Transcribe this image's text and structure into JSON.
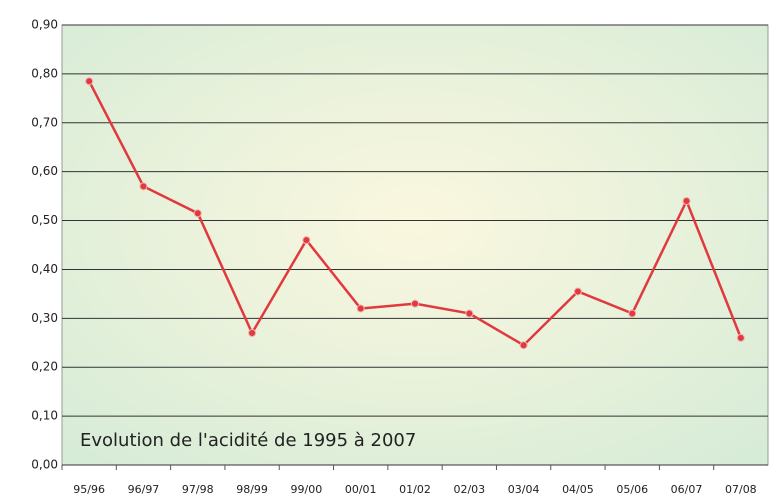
{
  "chart_data": {
    "type": "line",
    "title": "Evolution de l'acidité de 1995 à 2007",
    "categories": [
      "95/96",
      "96/97",
      "97/98",
      "98/99",
      "99/00",
      "00/01",
      "01/02",
      "02/03",
      "03/04",
      "04/05",
      "05/06",
      "06/07",
      "07/08"
    ],
    "values": [
      0.785,
      0.57,
      0.515,
      0.27,
      0.46,
      0.32,
      0.33,
      0.31,
      0.245,
      0.355,
      0.31,
      0.54,
      0.26
    ],
    "color": "#e0393e",
    "ylim": [
      0,
      0.9
    ],
    "yticks": [
      {
        "value": 0,
        "label": "0,00"
      },
      {
        "value": 0.1,
        "label": "0,10"
      },
      {
        "value": 0.2,
        "label": "0,20"
      },
      {
        "value": 0.3,
        "label": "0,30"
      },
      {
        "value": 0.4,
        "label": "0,40"
      },
      {
        "value": 0.5,
        "label": "0,50"
      },
      {
        "value": 0.6,
        "label": "0,60"
      },
      {
        "value": 0.7,
        "label": "0,70"
      },
      {
        "value": 0.8,
        "label": "0,80"
      },
      {
        "value": 0.9,
        "label": "0,90"
      }
    ],
    "grid": true
  }
}
